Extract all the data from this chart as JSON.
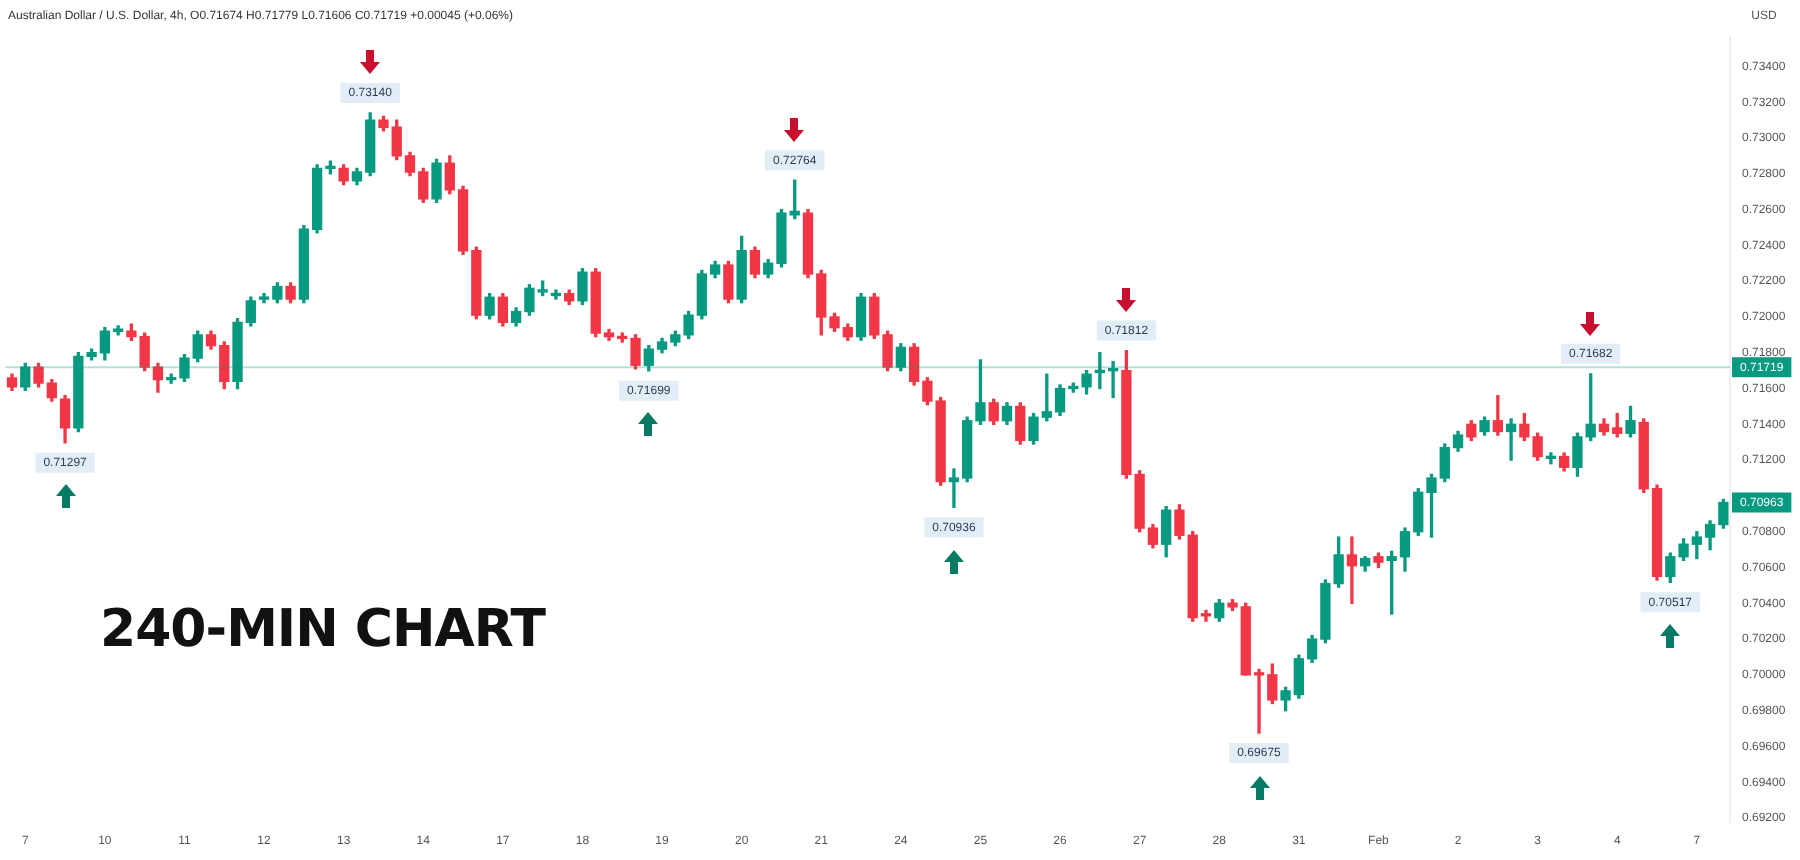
{
  "chart_data": {
    "type": "candlestick",
    "title": "240-MIN CHART",
    "subtitle": "Australian Dollar / U.S. Dollar, 4h, O0.71674 H0.71779 L0.71606 C0.71719 +0.00045 (+0.06%)",
    "ylabel": "USD",
    "categories": [
      null,
      "7",
      null,
      null,
      null,
      null,
      null,
      "10",
      null,
      null,
      null,
      null,
      null,
      "11",
      null,
      null,
      null,
      null,
      null,
      "12",
      null,
      null,
      null,
      null,
      null,
      "13",
      null,
      null,
      null,
      null,
      null,
      "14",
      null,
      null,
      null,
      null,
      null,
      "17",
      null,
      null,
      null,
      null,
      null,
      "18",
      null,
      null,
      null,
      null,
      null,
      "19",
      null,
      null,
      null,
      null,
      null,
      "20",
      null,
      null,
      null,
      null,
      null,
      "21",
      null,
      null,
      null,
      null,
      null,
      "24",
      null,
      null,
      null,
      null,
      null,
      "25",
      null,
      null,
      null,
      null,
      null,
      "26",
      null,
      null,
      null,
      null,
      null,
      "27",
      null,
      null,
      null,
      null,
      null,
      "28",
      null,
      null,
      null,
      null,
      null,
      "31",
      null,
      null,
      null,
      null,
      null,
      "Feb",
      null,
      null,
      null,
      null,
      null,
      "2",
      null,
      null,
      null,
      null,
      null,
      "3",
      null,
      null,
      null,
      null,
      null,
      "4",
      null,
      null,
      null,
      null,
      null,
      "7",
      null,
      null
    ],
    "ohlc": [
      [
        0.7166,
        0.7168,
        0.7159,
        0.7161
      ],
      [
        0.7161,
        0.7174,
        0.7159,
        0.7172
      ],
      [
        0.7172,
        0.7174,
        0.7161,
        0.7163
      ],
      [
        0.7163,
        0.7165,
        0.7153,
        0.7155
      ],
      [
        0.7154,
        0.7156,
        0.71297,
        0.7138
      ],
      [
        0.7138,
        0.718,
        0.7136,
        0.7178
      ],
      [
        0.7178,
        0.7182,
        0.7176,
        0.718
      ],
      [
        0.718,
        0.7194,
        0.7176,
        0.7192
      ],
      [
        0.7192,
        0.7195,
        0.719,
        0.7193
      ],
      [
        0.7192,
        0.7196,
        0.7187,
        0.7189
      ],
      [
        0.7189,
        0.7191,
        0.717,
        0.7172
      ],
      [
        0.7172,
        0.7174,
        0.7158,
        0.7165
      ],
      [
        0.7165,
        0.7168,
        0.7163,
        0.7166
      ],
      [
        0.7166,
        0.7179,
        0.7164,
        0.7177
      ],
      [
        0.7177,
        0.7192,
        0.7175,
        0.719
      ],
      [
        0.719,
        0.7192,
        0.7182,
        0.7184
      ],
      [
        0.7184,
        0.7186,
        0.716,
        0.7164
      ],
      [
        0.7164,
        0.7199,
        0.716,
        0.7197
      ],
      [
        0.7197,
        0.7211,
        0.7195,
        0.7209
      ],
      [
        0.721,
        0.7213,
        0.7208,
        0.7211
      ],
      [
        0.721,
        0.7219,
        0.7208,
        0.7217
      ],
      [
        0.7217,
        0.7219,
        0.7208,
        0.721
      ],
      [
        0.721,
        0.7251,
        0.7208,
        0.7249
      ],
      [
        0.7249,
        0.7285,
        0.7247,
        0.7283
      ],
      [
        0.7283,
        0.7287,
        0.728,
        0.7284
      ],
      [
        0.7283,
        0.7285,
        0.7274,
        0.7276
      ],
      [
        0.7276,
        0.7283,
        0.7274,
        0.7281
      ],
      [
        0.7281,
        0.7314,
        0.7279,
        0.731
      ],
      [
        0.731,
        0.7312,
        0.7304,
        0.7306
      ],
      [
        0.7306,
        0.731,
        0.7288,
        0.729
      ],
      [
        0.729,
        0.7292,
        0.7279,
        0.7281
      ],
      [
        0.7281,
        0.7283,
        0.7264,
        0.7266
      ],
      [
        0.7266,
        0.7288,
        0.7264,
        0.7286
      ],
      [
        0.7286,
        0.729,
        0.7269,
        0.7271
      ],
      [
        0.7271,
        0.7273,
        0.7235,
        0.7237
      ],
      [
        0.7237,
        0.7239,
        0.7199,
        0.7201
      ],
      [
        0.7201,
        0.7213,
        0.7199,
        0.7211
      ],
      [
        0.7211,
        0.7213,
        0.7195,
        0.7197
      ],
      [
        0.7197,
        0.7205,
        0.7195,
        0.7203
      ],
      [
        0.7203,
        0.7218,
        0.7201,
        0.7216
      ],
      [
        0.7214,
        0.722,
        0.7212,
        0.7215
      ],
      [
        0.7212,
        0.7215,
        0.721,
        0.7213
      ],
      [
        0.7213,
        0.7215,
        0.7207,
        0.7209
      ],
      [
        0.7209,
        0.7227,
        0.7207,
        0.7225
      ],
      [
        0.7225,
        0.7227,
        0.7189,
        0.7191
      ],
      [
        0.7191,
        0.7193,
        0.7187,
        0.7189
      ],
      [
        0.7189,
        0.7191,
        0.7186,
        0.7188
      ],
      [
        0.7188,
        0.719,
        0.7171,
        0.7173
      ],
      [
        0.7173,
        0.7184,
        0.71699,
        0.7182
      ],
      [
        0.7182,
        0.7188,
        0.718,
        0.7186
      ],
      [
        0.7186,
        0.7192,
        0.7184,
        0.719
      ],
      [
        0.719,
        0.7203,
        0.7188,
        0.7201
      ],
      [
        0.7201,
        0.7226,
        0.7199,
        0.7224
      ],
      [
        0.7224,
        0.7231,
        0.7222,
        0.7229
      ],
      [
        0.7229,
        0.7231,
        0.7208,
        0.721
      ],
      [
        0.721,
        0.7245,
        0.7208,
        0.7237
      ],
      [
        0.7237,
        0.7239,
        0.7222,
        0.7224
      ],
      [
        0.7224,
        0.7232,
        0.7222,
        0.723
      ],
      [
        0.723,
        0.726,
        0.7228,
        0.7258
      ],
      [
        0.7257,
        0.72764,
        0.7255,
        0.7259
      ],
      [
        0.7258,
        0.726,
        0.7222,
        0.7224
      ],
      [
        0.7224,
        0.7226,
        0.719,
        0.72
      ],
      [
        0.72,
        0.7202,
        0.7192,
        0.7194
      ],
      [
        0.7194,
        0.7196,
        0.7187,
        0.7189
      ],
      [
        0.7189,
        0.7213,
        0.7187,
        0.7211
      ],
      [
        0.7211,
        0.7213,
        0.7188,
        0.719
      ],
      [
        0.719,
        0.7192,
        0.717,
        0.7172
      ],
      [
        0.7172,
        0.7185,
        0.717,
        0.7183
      ],
      [
        0.7183,
        0.7185,
        0.7162,
        0.7164
      ],
      [
        0.7164,
        0.7166,
        0.7151,
        0.7153
      ],
      [
        0.7153,
        0.7155,
        0.7106,
        0.7108
      ],
      [
        0.7108,
        0.7115,
        0.70936,
        0.711
      ],
      [
        0.711,
        0.7144,
        0.7108,
        0.7142
      ],
      [
        0.7142,
        0.7176,
        0.714,
        0.7152
      ],
      [
        0.7152,
        0.7154,
        0.714,
        0.7142
      ],
      [
        0.7142,
        0.7152,
        0.714,
        0.715
      ],
      [
        0.715,
        0.7152,
        0.7129,
        0.7131
      ],
      [
        0.7131,
        0.7146,
        0.7129,
        0.7144
      ],
      [
        0.7144,
        0.7168,
        0.7142,
        0.7147
      ],
      [
        0.7147,
        0.7162,
        0.7145,
        0.716
      ],
      [
        0.716,
        0.7163,
        0.7158,
        0.7161
      ],
      [
        0.7161,
        0.717,
        0.7157,
        0.7168
      ],
      [
        0.7169,
        0.718,
        0.716,
        0.717
      ],
      [
        0.717,
        0.7175,
        0.7155,
        0.7171
      ],
      [
        0.717,
        0.71812,
        0.711,
        0.7112
      ],
      [
        0.7112,
        0.7114,
        0.708,
        0.7082
      ],
      [
        0.7082,
        0.7084,
        0.7071,
        0.7073
      ],
      [
        0.7073,
        0.7094,
        0.7066,
        0.7092
      ],
      [
        0.7092,
        0.7095,
        0.7076,
        0.7078
      ],
      [
        0.7078,
        0.708,
        0.703,
        0.7032
      ],
      [
        0.7034,
        0.7036,
        0.703,
        0.7033
      ],
      [
        0.7032,
        0.7042,
        0.703,
        0.704
      ],
      [
        0.704,
        0.7042,
        0.7036,
        0.7038
      ],
      [
        0.7038,
        0.704,
        0.7,
        0.7
      ],
      [
        0.7001,
        0.7003,
        0.69675,
        0.7
      ],
      [
        0.7,
        0.7006,
        0.6984,
        0.6986
      ],
      [
        0.6986,
        0.6993,
        0.698,
        0.6991
      ],
      [
        0.6989,
        0.7011,
        0.6987,
        0.7009
      ],
      [
        0.7009,
        0.7022,
        0.7007,
        0.702
      ],
      [
        0.702,
        0.7053,
        0.7018,
        0.7051
      ],
      [
        0.7051,
        0.7077,
        0.7049,
        0.7067
      ],
      [
        0.7067,
        0.7077,
        0.704,
        0.7061
      ],
      [
        0.7061,
        0.7066,
        0.7058,
        0.7065
      ],
      [
        0.7066,
        0.7068,
        0.706,
        0.7063
      ],
      [
        0.7064,
        0.7069,
        0.7034,
        0.7066
      ],
      [
        0.7066,
        0.7082,
        0.7058,
        0.708
      ],
      [
        0.708,
        0.7104,
        0.7078,
        0.7102
      ],
      [
        0.7102,
        0.7112,
        0.7077,
        0.711
      ],
      [
        0.711,
        0.7129,
        0.7108,
        0.7127
      ],
      [
        0.7127,
        0.7136,
        0.7125,
        0.7134
      ],
      [
        0.714,
        0.7142,
        0.7131,
        0.7133
      ],
      [
        0.7136,
        0.7144,
        0.7134,
        0.7142
      ],
      [
        0.7142,
        0.7156,
        0.7134,
        0.7136
      ],
      [
        0.7136,
        0.7143,
        0.712,
        0.714
      ],
      [
        0.714,
        0.7146,
        0.7131,
        0.7133
      ],
      [
        0.7133,
        0.7135,
        0.712,
        0.7122
      ],
      [
        0.7121,
        0.7124,
        0.7118,
        0.7122
      ],
      [
        0.7122,
        0.7124,
        0.7114,
        0.7116
      ],
      [
        0.7116,
        0.7135,
        0.7111,
        0.7133
      ],
      [
        0.7133,
        0.71682,
        0.7131,
        0.714
      ],
      [
        0.714,
        0.7143,
        0.7134,
        0.7136
      ],
      [
        0.7138,
        0.7146,
        0.7133,
        0.7135
      ],
      [
        0.7135,
        0.715,
        0.7133,
        0.7142
      ],
      [
        0.7141,
        0.7143,
        0.7102,
        0.7104
      ],
      [
        0.7104,
        0.7106,
        0.7053,
        0.7055
      ],
      [
        0.7055,
        0.7068,
        0.70517,
        0.7066
      ],
      [
        0.7066,
        0.7076,
        0.7064,
        0.7073
      ],
      [
        0.7073,
        0.708,
        0.7065,
        0.7077
      ],
      [
        0.7077,
        0.7086,
        0.707,
        0.7084
      ],
      [
        0.7084,
        0.7098,
        0.7082,
        0.70963
      ]
    ],
    "colors": [
      "#f23645",
      "#089981",
      "#f23645",
      "#f23645",
      "#f23645",
      "#089981",
      "#089981",
      "#089981",
      "#089981",
      "#f23645",
      "#f23645",
      "#f23645",
      "#089981",
      "#089981",
      "#089981",
      "#f23645",
      "#f23645",
      "#089981",
      "#089981",
      "#089981",
      "#089981",
      "#f23645",
      "#089981",
      "#089981",
      "#089981",
      "#f23645",
      "#089981",
      "#089981",
      "#f23645",
      "#f23645",
      "#f23645",
      "#f23645",
      "#089981",
      "#f23645",
      "#f23645",
      "#f23645",
      "#089981",
      "#f23645",
      "#089981",
      "#089981",
      "#089981",
      "#089981",
      "#f23645",
      "#089981",
      "#f23645",
      "#f23645",
      "#f23645",
      "#f23645",
      "#089981",
      "#089981",
      "#089981",
      "#089981",
      "#089981",
      "#089981",
      "#f23645",
      "#089981",
      "#f23645",
      "#089981",
      "#089981",
      "#089981",
      "#f23645",
      "#f23645",
      "#f23645",
      "#f23645",
      "#089981",
      "#f23645",
      "#f23645",
      "#089981",
      "#f23645",
      "#f23645",
      "#f23645",
      "#089981",
      "#089981",
      "#089981",
      "#f23645",
      "#089981",
      "#f23645",
      "#089981",
      "#089981",
      "#089981",
      "#089981",
      "#089981",
      "#089981",
      "#089981",
      "#f23645",
      "#f23645",
      "#f23645",
      "#089981",
      "#f23645",
      "#f23645",
      "#f23645",
      "#089981",
      "#f23645",
      "#f23645",
      "#f23645",
      "#f23645",
      "#089981",
      "#089981",
      "#089981",
      "#089981",
      "#089981",
      "#f23645",
      "#089981",
      "#f23645",
      "#089981",
      "#089981",
      "#089981",
      "#089981",
      "#089981",
      "#089981",
      "#f23645",
      "#089981",
      "#f23645",
      "#089981",
      "#f23645",
      "#f23645",
      "#089981",
      "#f23645",
      "#089981",
      "#089981",
      "#f23645",
      "#f23645",
      "#089981",
      "#f23645",
      "#f23645",
      "#089981",
      "#089981",
      "#089981",
      "#089981",
      "#089981"
    ],
    "ylim": [
      0.6918,
      0.7357
    ],
    "yticks": [
      {
        "value": 0.692,
        "label": "0.69200"
      },
      {
        "value": 0.694,
        "label": "0.69400"
      },
      {
        "value": 0.696,
        "label": "0.69600"
      },
      {
        "value": 0.698,
        "label": "0.69800"
      },
      {
        "value": 0.7,
        "label": "0.70000"
      },
      {
        "value": 0.702,
        "label": "0.70200"
      },
      {
        "value": 0.704,
        "label": "0.70400"
      },
      {
        "value": 0.706,
        "label": "0.70600"
      },
      {
        "value": 0.708,
        "label": "0.70800"
      },
      {
        "value": 0.712,
        "label": "0.71200"
      },
      {
        "value": 0.714,
        "label": "0.71400"
      },
      {
        "value": 0.716,
        "label": "0.71600"
      },
      {
        "value": 0.718,
        "label": "0.71800"
      },
      {
        "value": 0.72,
        "label": "0.72000"
      },
      {
        "value": 0.722,
        "label": "0.72200"
      },
      {
        "value": 0.724,
        "label": "0.72400"
      },
      {
        "value": 0.726,
        "label": "0.72600"
      },
      {
        "value": 0.728,
        "label": "0.72800"
      },
      {
        "value": 0.73,
        "label": "0.73000"
      },
      {
        "value": 0.732,
        "label": "0.73200"
      },
      {
        "value": 0.734,
        "label": "0.73400"
      }
    ],
    "ref_lines": [
      {
        "axis": "y",
        "value": 0.71719,
        "label": "0.71719",
        "color": "#089981"
      }
    ],
    "annotations": [
      {
        "text": "0.73140",
        "y": 0.7314
      },
      {
        "text": "0.72764",
        "y": 0.72764
      },
      {
        "text": "0.71812",
        "y": 0.71812
      },
      {
        "text": "0.71682",
        "y": 0.71682
      },
      {
        "text": "0.71297",
        "y": 0.71297
      },
      {
        "text": "0.71699",
        "y": 0.71699
      },
      {
        "text": "0.70936",
        "y": 0.70936
      },
      {
        "text": "0.69675",
        "y": 0.69675
      },
      {
        "text": "0.70517",
        "y": 0.70517
      },
      {
        "text": "0.70963",
        "y": 0.70963
      }
    ],
    "grid": false,
    "legend": false
  }
}
